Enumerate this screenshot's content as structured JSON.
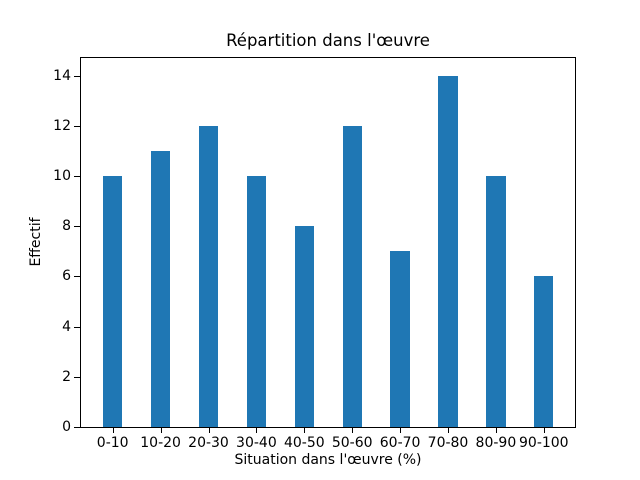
{
  "chart_data": {
    "type": "bar",
    "title": "Répartition dans l'œuvre",
    "xlabel": "Situation dans l'œuvre (%)",
    "ylabel": "Effectif",
    "categories": [
      "0-10",
      "10-20",
      "20-30",
      "30-40",
      "40-50",
      "50-60",
      "60-70",
      "70-80",
      "80-90",
      "90-100"
    ],
    "values": [
      10,
      11,
      12,
      10,
      8,
      12,
      7,
      14,
      10,
      6
    ],
    "ylim": [
      0,
      14.7
    ],
    "yticks": [
      0,
      2,
      4,
      6,
      8,
      10,
      12,
      14
    ],
    "bar_color": "#1f77b4",
    "axis_color": "#000000",
    "grid": false,
    "legend": "none"
  }
}
